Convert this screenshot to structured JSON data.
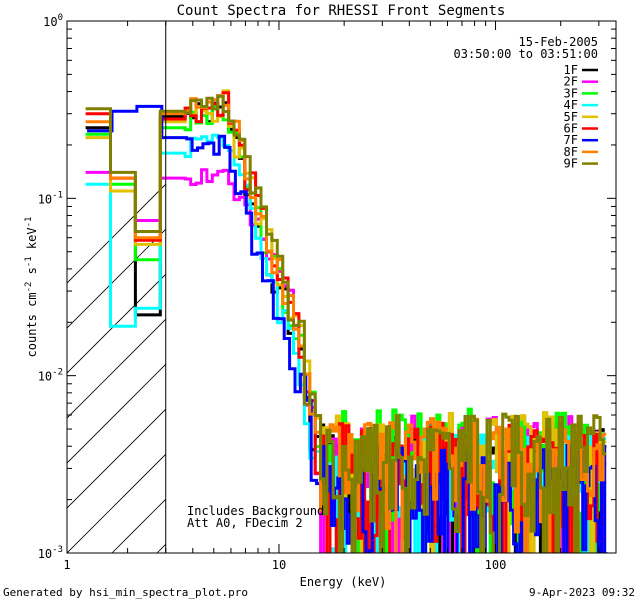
{
  "chart_data": {
    "type": "line",
    "title": "Count Spectra for RHESSI Front Segments",
    "xlabel": "Energy (keV)",
    "ylabel_base": "counts cm",
    "ylabel_sup1": "-2",
    "ylabel_mid": " s",
    "ylabel_sup2": "-1",
    "ylabel_mid2": " keV",
    "ylabel_sup3": "-1",
    "x_scale": "log",
    "y_scale": "log",
    "xlim": [
      1.05,
      360
    ],
    "ylim": [
      0.001,
      1.0
    ],
    "x_ticks": [
      {
        "value": 1,
        "label": "1"
      },
      {
        "value": 10,
        "label": "10"
      },
      {
        "value": 100,
        "label": "100"
      }
    ],
    "y_ticks": [
      {
        "value": 0.001,
        "base": "10",
        "exp": "-3"
      },
      {
        "value": 0.01,
        "base": "10",
        "exp": "-2"
      },
      {
        "value": 0.1,
        "base": "10",
        "exp": "-1"
      },
      {
        "value": 1,
        "base": "10",
        "exp": "0"
      }
    ],
    "date": "15-Feb-2005",
    "time_range": "03:50:00 to 03:51:00",
    "excluded_region": {
      "from": 1.05,
      "to": 3.0,
      "pattern": "hatched"
    },
    "annotation_lines": [
      "Includes Background",
      "Att A0, FDecim 2"
    ],
    "series": [
      {
        "name": "1F",
        "color": "#000000",
        "low": [
          0.25,
          0.23,
          0.2,
          0.11,
          0.06,
          0.038,
          0.029,
          0.022,
          0.017,
          0.026,
          0.12,
          0.29
        ],
        "peak": 0.31,
        "mid": 0.014,
        "tail": 0.0032,
        "seed": 1
      },
      {
        "name": "2F",
        "color": "#ff00ff",
        "low": [
          0.14,
          0.14,
          0.15,
          0.13,
          0.11,
          0.1,
          0.085,
          0.075,
          0.072,
          0.1,
          0.12,
          0.13
        ],
        "peak": 0.14,
        "mid": 0.022,
        "tail": 0.0036,
        "seed": 2
      },
      {
        "name": "3F",
        "color": "#00ff00",
        "low": [
          0.23,
          0.22,
          0.18,
          0.12,
          0.08,
          0.06,
          0.05,
          0.045,
          0.04,
          0.06,
          0.13,
          0.25
        ],
        "peak": 0.3,
        "mid": 0.016,
        "tail": 0.004,
        "seed": 3
      },
      {
        "name": "4F",
        "color": "#00ffff",
        "low": [
          0.12,
          0.05,
          0.019,
          0.019,
          0.019,
          0.019,
          0.022,
          0.024,
          0.026,
          0.04,
          0.09,
          0.18
        ],
        "peak": 0.24,
        "mid": 0.012,
        "tail": 0.003,
        "seed": 4
      },
      {
        "name": "5F",
        "color": "#e0c000",
        "low": [
          0.22,
          0.2,
          0.17,
          0.11,
          0.08,
          0.065,
          0.058,
          0.055,
          0.052,
          0.07,
          0.14,
          0.27
        ],
        "peak": 0.33,
        "mid": 0.018,
        "tail": 0.0038,
        "seed": 5
      },
      {
        "name": "6F",
        "color": "#ff0000",
        "low": [
          0.3,
          0.27,
          0.21,
          0.13,
          0.09,
          0.07,
          0.06,
          0.058,
          0.055,
          0.08,
          0.15,
          0.28
        ],
        "peak": 0.35,
        "mid": 0.017,
        "tail": 0.0033,
        "seed": 6
      },
      {
        "name": "7F",
        "color": "#0000ff",
        "low": [
          0.24,
          0.26,
          0.29,
          0.31,
          0.32,
          0.33,
          0.34,
          0.33,
          0.31,
          0.29,
          0.27,
          0.22
        ],
        "peak": 0.2,
        "mid": 0.01,
        "tail": 0.0025,
        "seed": 7
      },
      {
        "name": "8F",
        "color": "#ff8000",
        "low": [
          0.27,
          0.24,
          0.2,
          0.13,
          0.09,
          0.072,
          0.065,
          0.06,
          0.057,
          0.08,
          0.16,
          0.3
        ],
        "peak": 0.36,
        "mid": 0.019,
        "tail": 0.0035,
        "seed": 8
      },
      {
        "name": "9F",
        "color": "#808000",
        "low": [
          0.32,
          0.29,
          0.23,
          0.14,
          0.1,
          0.08,
          0.07,
          0.065,
          0.062,
          0.085,
          0.17,
          0.31
        ],
        "peak": 0.37,
        "mid": 0.018,
        "tail": 0.0037,
        "seed": 9
      }
    ]
  },
  "footer": {
    "left": "Generated by hsi_min_spectra_plot.pro",
    "right": "9-Apr-2023 09:32"
  }
}
